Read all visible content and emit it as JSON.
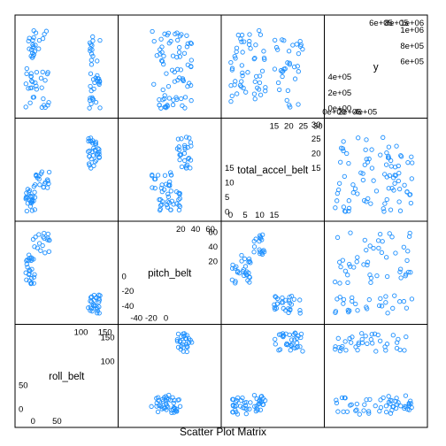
{
  "chart_data": {
    "type": "scatter",
    "title": "Scatter Plot Matrix",
    "point_color": "#1E90FF",
    "variables": [
      {
        "name": "roll_belt",
        "range": [
          -30,
          170
        ],
        "ticks_low": [
          {
            "value": 0,
            "label": "0"
          },
          {
            "value": 50,
            "label": "50"
          }
        ],
        "ticks_high": [
          {
            "value": 100,
            "label": "100"
          },
          {
            "value": 150,
            "label": "150"
          }
        ],
        "clusters": [
          {
            "x": [
              -15,
              5
            ],
            "y": [
              -10,
              25
            ],
            "n": 18
          },
          {
            "x": [
              115,
              140
            ],
            "y": [
              120,
              160
            ],
            "n": 30
          },
          {
            "x": [
              -5,
              35
            ],
            "y": [
              -5,
              30
            ],
            "n": 20
          }
        ]
      },
      {
        "name": "pitch_belt",
        "range": [
          -60,
          70
        ],
        "ticks_low": [
          {
            "value": -40,
            "label": "-40"
          },
          {
            "value": -20,
            "label": "-20"
          },
          {
            "value": 0,
            "label": "0"
          }
        ],
        "ticks_high": [
          {
            "value": 20,
            "label": "20"
          },
          {
            "value": 40,
            "label": "40"
          },
          {
            "value": 60,
            "label": "60"
          }
        ],
        "clusters": [
          {
            "x": [
              -10,
              20
            ],
            "y": [
              -10,
              30
            ],
            "n": 22
          },
          {
            "x": [
              15,
              35
            ],
            "y": [
              -50,
              -25
            ],
            "n": 20
          },
          {
            "x": [
              -20,
              10
            ],
            "y": [
              30,
              60
            ],
            "n": 10
          }
        ]
      },
      {
        "name": "total_accel_belt",
        "range": [
          -2,
          31
        ],
        "ticks_low": [
          {
            "value": 0,
            "label": "0"
          },
          {
            "value": 5,
            "label": "5"
          },
          {
            "value": 10,
            "label": "10"
          },
          {
            "value": 15,
            "label": "15"
          }
        ],
        "ticks_high": [
          {
            "value": 15,
            "label": "15"
          },
          {
            "value": 20,
            "label": "20"
          },
          {
            "value": 25,
            "label": "25"
          },
          {
            "value": 30,
            "label": "30"
          }
        ],
        "clusters": [
          {
            "x": [
              0,
              7
            ],
            "y": [
              0,
              8
            ],
            "n": 24
          },
          {
            "x": [
              15,
              25
            ],
            "y": [
              15,
              26
            ],
            "n": 26
          },
          {
            "x": [
              8,
              12
            ],
            "y": [
              8,
              14
            ],
            "n": 12
          }
        ]
      },
      {
        "name": "y",
        "range": [
          -80000,
          1150000
        ],
        "ticks_low": [
          {
            "value": 0,
            "label": "0e+00"
          },
          {
            "value": 200000,
            "label": "2e+05"
          },
          {
            "value": 400000,
            "label": "4e+05"
          }
        ],
        "ticks_high": [
          {
            "value": 600000,
            "label": "6e+05"
          },
          {
            "value": 800000,
            "label": "8e+05"
          },
          {
            "value": 1000000,
            "label": "1e+06"
          }
        ],
        "clusters": [
          {
            "x": [
              0,
              1000000
            ],
            "y": [
              0,
              1000000
            ],
            "n": 40
          }
        ]
      }
    ]
  }
}
